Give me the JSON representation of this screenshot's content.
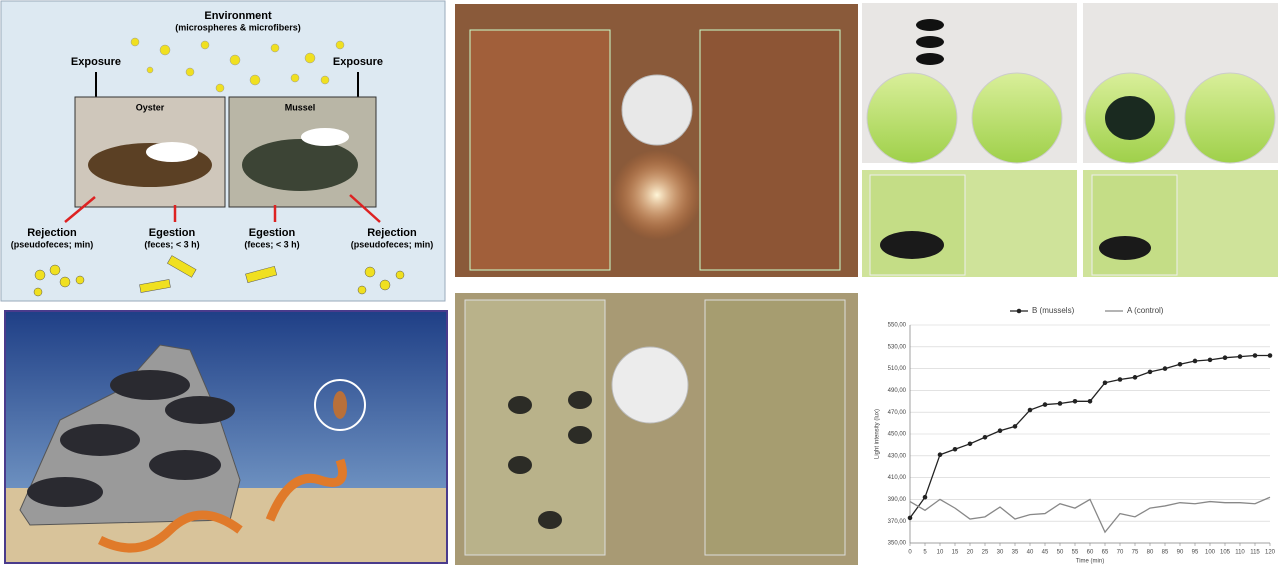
{
  "diagram": {
    "title": "Environment",
    "subtitle": "(microspheres & microfibers)",
    "exposure_left": "Exposure",
    "exposure_right": "Exposure",
    "oyster": "Oyster",
    "mussel": "Mussel",
    "outcomes": [
      {
        "label": "Rejection",
        "detail": "(pseudofeces; min)"
      },
      {
        "label": "Egestion",
        "detail": "(feces; < 3 h)"
      },
      {
        "label": "Egestion",
        "detail": "(feces; < 3 h)"
      },
      {
        "label": "Rejection",
        "detail": "(pseudofeces; min)"
      }
    ]
  },
  "chart_data": {
    "type": "line",
    "y_label": "Light intensity (lux)",
    "x_label": "Time (min)",
    "x": [
      0,
      5,
      10,
      15,
      20,
      25,
      30,
      35,
      40,
      45,
      50,
      55,
      60,
      65,
      70,
      75,
      80,
      85,
      90,
      95,
      100,
      105,
      110,
      115,
      120
    ],
    "xlim": [
      0,
      120
    ],
    "xticks": [
      0,
      5,
      10,
      15,
      20,
      25,
      30,
      35,
      40,
      45,
      50,
      55,
      60,
      65,
      70,
      75,
      80,
      85,
      90,
      95,
      100,
      105,
      110,
      115,
      120
    ],
    "ylim": [
      350,
      550
    ],
    "yticks": [
      {
        "value": 350,
        "label": "350,00"
      },
      {
        "value": 370,
        "label": "370,00"
      },
      {
        "value": 390,
        "label": "390,00"
      },
      {
        "value": 410,
        "label": "410,00"
      },
      {
        "value": 430,
        "label": "430,00"
      },
      {
        "value": 450,
        "label": "450,00"
      },
      {
        "value": 470,
        "label": "470,00"
      },
      {
        "value": 490,
        "label": "490,00"
      },
      {
        "value": 510,
        "label": "510,00"
      },
      {
        "value": 530,
        "label": "530,00"
      },
      {
        "value": 550,
        "label": "550,00"
      }
    ],
    "grid": true,
    "legend": "top",
    "series": [
      {
        "name": "B (mussels)",
        "color": "#222222",
        "marker": "circle",
        "values": [
          373,
          392,
          431,
          436,
          441,
          447,
          453,
          457,
          472,
          477,
          478,
          480,
          480,
          497,
          500,
          502,
          507,
          510,
          514,
          517,
          518,
          520,
          521,
          522,
          522
        ]
      },
      {
        "name": "A (control)",
        "color": "#888888",
        "marker": "none",
        "values": [
          388,
          380,
          390,
          382,
          372,
          374,
          383,
          372,
          376,
          377,
          386,
          382,
          390,
          360,
          377,
          374,
          382,
          384,
          387,
          386,
          388,
          387,
          387,
          386,
          392
        ]
      }
    ]
  }
}
